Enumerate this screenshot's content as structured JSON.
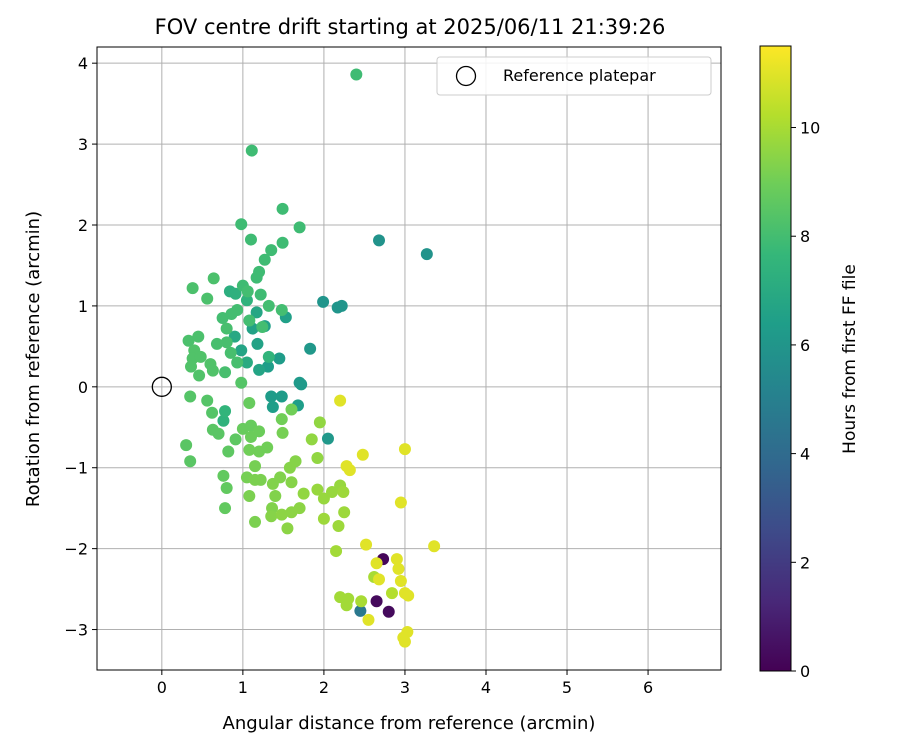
{
  "chart_data": {
    "type": "scatter",
    "title": "FOV centre drift starting at 2025/06/11 21:39:26",
    "xlabel": "Angular distance from reference (arcmin)",
    "ylabel": "Rotation from reference (arcmin)",
    "xlim": [
      -0.8,
      6.9
    ],
    "ylim": [
      -3.5,
      4.2
    ],
    "xticks": [
      0,
      1,
      2,
      3,
      4,
      5,
      6
    ],
    "yticks": [
      -3,
      -2,
      -1,
      0,
      1,
      2,
      3,
      4
    ],
    "grid": true,
    "legend": {
      "placement": "top-right",
      "entries": [
        "Reference platepar"
      ]
    },
    "reference_point": {
      "x": 0,
      "y": 0,
      "label": "Reference platepar"
    },
    "colorbar": {
      "label": "Hours from first FF file",
      "range": [
        0,
        11.5
      ],
      "ticks": [
        0,
        2,
        4,
        6,
        8,
        10
      ],
      "colormap": "viridis"
    },
    "points": [
      {
        "x": 2.73,
        "y": -2.13,
        "h": 0.2
      },
      {
        "x": 2.65,
        "y": -2.65,
        "h": 0.3
      },
      {
        "x": 2.8,
        "y": -2.78,
        "h": 0.3
      },
      {
        "x": 2.45,
        "y": -2.77,
        "h": 4.6
      },
      {
        "x": 2.68,
        "y": 1.81,
        "h": 5.9
      },
      {
        "x": 3.27,
        "y": 1.64,
        "h": 5.9
      },
      {
        "x": 1.99,
        "y": 1.05,
        "h": 6.0
      },
      {
        "x": 2.17,
        "y": 0.98,
        "h": 6.0
      },
      {
        "x": 2.22,
        "y": 1.0,
        "h": 6.0
      },
      {
        "x": 1.83,
        "y": 0.47,
        "h": 6.1
      },
      {
        "x": 2.05,
        "y": -0.64,
        "h": 6.1
      },
      {
        "x": 1.7,
        "y": 0.05,
        "h": 6.2
      },
      {
        "x": 1.72,
        "y": 0.03,
        "h": 6.2
      },
      {
        "x": 1.45,
        "y": 0.35,
        "h": 6.3
      },
      {
        "x": 1.35,
        "y": -0.12,
        "h": 6.3
      },
      {
        "x": 1.48,
        "y": -0.12,
        "h": 6.3
      },
      {
        "x": 1.37,
        "y": -0.25,
        "h": 6.4
      },
      {
        "x": 1.68,
        "y": -0.23,
        "h": 6.4
      },
      {
        "x": 1.31,
        "y": 0.25,
        "h": 6.4
      },
      {
        "x": 1.53,
        "y": 0.86,
        "h": 6.5
      },
      {
        "x": 1.27,
        "y": 0.75,
        "h": 6.5
      },
      {
        "x": 1.18,
        "y": 0.53,
        "h": 6.6
      },
      {
        "x": 1.12,
        "y": 0.72,
        "h": 6.6
      },
      {
        "x": 0.98,
        "y": 0.45,
        "h": 6.7
      },
      {
        "x": 1.2,
        "y": 0.21,
        "h": 6.7
      },
      {
        "x": 1.17,
        "y": 0.92,
        "h": 6.8
      },
      {
        "x": 0.9,
        "y": 0.62,
        "h": 6.9
      },
      {
        "x": 1.05,
        "y": 0.3,
        "h": 7.0
      },
      {
        "x": 0.84,
        "y": 1.18,
        "h": 7.2
      },
      {
        "x": 0.91,
        "y": 1.15,
        "h": 7.3
      },
      {
        "x": 1.05,
        "y": 1.07,
        "h": 7.4
      },
      {
        "x": 0.76,
        "y": -0.42,
        "h": 7.4
      },
      {
        "x": 0.78,
        "y": -0.3,
        "h": 7.5
      },
      {
        "x": 1.32,
        "y": 0.37,
        "h": 7.5
      },
      {
        "x": 2.4,
        "y": 3.86,
        "h": 7.9
      },
      {
        "x": 1.11,
        "y": 2.92,
        "h": 7.9
      },
      {
        "x": 1.49,
        "y": 2.2,
        "h": 7.9
      },
      {
        "x": 0.98,
        "y": 2.01,
        "h": 7.9
      },
      {
        "x": 1.7,
        "y": 1.97,
        "h": 7.9
      },
      {
        "x": 1.1,
        "y": 1.82,
        "h": 7.9
      },
      {
        "x": 1.49,
        "y": 1.78,
        "h": 7.9
      },
      {
        "x": 1.35,
        "y": 1.69,
        "h": 7.9
      },
      {
        "x": 1.27,
        "y": 1.57,
        "h": 7.9
      },
      {
        "x": 1.2,
        "y": 1.42,
        "h": 7.9
      },
      {
        "x": 1.17,
        "y": 1.35,
        "h": 7.9
      },
      {
        "x": 1.0,
        "y": 1.25,
        "h": 7.9
      },
      {
        "x": 1.22,
        "y": 1.14,
        "h": 7.9
      },
      {
        "x": 1.06,
        "y": 1.18,
        "h": 8.0
      },
      {
        "x": 1.32,
        "y": 1.0,
        "h": 8.0
      },
      {
        "x": 1.48,
        "y": 0.95,
        "h": 8.0
      },
      {
        "x": 0.93,
        "y": 0.95,
        "h": 8.0
      },
      {
        "x": 0.86,
        "y": 0.9,
        "h": 8.0
      },
      {
        "x": 0.75,
        "y": 0.85,
        "h": 8.0
      },
      {
        "x": 1.08,
        "y": 0.82,
        "h": 8.0
      },
      {
        "x": 1.24,
        "y": 0.74,
        "h": 8.0
      },
      {
        "x": 0.8,
        "y": 0.72,
        "h": 8.1
      },
      {
        "x": 0.8,
        "y": 0.55,
        "h": 8.1
      },
      {
        "x": 0.68,
        "y": 0.53,
        "h": 8.1
      },
      {
        "x": 0.85,
        "y": 0.42,
        "h": 8.1
      },
      {
        "x": 0.93,
        "y": 0.3,
        "h": 8.1
      },
      {
        "x": 0.78,
        "y": 0.18,
        "h": 8.1
      },
      {
        "x": 0.38,
        "y": 1.22,
        "h": 8.2
      },
      {
        "x": 0.56,
        "y": 1.09,
        "h": 8.2
      },
      {
        "x": 0.64,
        "y": 1.34,
        "h": 8.2
      },
      {
        "x": 0.33,
        "y": 0.57,
        "h": 8.2
      },
      {
        "x": 0.45,
        "y": 0.62,
        "h": 8.2
      },
      {
        "x": 0.4,
        "y": 0.45,
        "h": 8.3
      },
      {
        "x": 0.38,
        "y": 0.35,
        "h": 8.3
      },
      {
        "x": 0.48,
        "y": 0.37,
        "h": 8.3
      },
      {
        "x": 0.36,
        "y": 0.25,
        "h": 8.3
      },
      {
        "x": 0.46,
        "y": 0.14,
        "h": 8.3
      },
      {
        "x": 0.6,
        "y": 0.28,
        "h": 8.3
      },
      {
        "x": 0.63,
        "y": 0.2,
        "h": 8.3
      },
      {
        "x": 0.98,
        "y": 0.05,
        "h": 8.4
      },
      {
        "x": 0.35,
        "y": -0.12,
        "h": 8.4
      },
      {
        "x": 0.56,
        "y": -0.17,
        "h": 8.4
      },
      {
        "x": 0.62,
        "y": -0.32,
        "h": 8.4
      },
      {
        "x": 0.3,
        "y": -0.72,
        "h": 8.5
      },
      {
        "x": 0.35,
        "y": -0.92,
        "h": 8.5
      },
      {
        "x": 0.63,
        "y": -0.53,
        "h": 8.5
      },
      {
        "x": 0.7,
        "y": -0.58,
        "h": 8.5
      },
      {
        "x": 0.91,
        "y": -0.65,
        "h": 8.6
      },
      {
        "x": 0.82,
        "y": -0.8,
        "h": 8.6
      },
      {
        "x": 0.76,
        "y": -1.1,
        "h": 8.7
      },
      {
        "x": 0.8,
        "y": -1.25,
        "h": 8.7
      },
      {
        "x": 0.78,
        "y": -1.5,
        "h": 8.7
      },
      {
        "x": 1.0,
        "y": -0.52,
        "h": 8.8
      },
      {
        "x": 1.08,
        "y": -0.2,
        "h": 8.8
      },
      {
        "x": 1.1,
        "y": -0.48,
        "h": 8.8
      },
      {
        "x": 1.2,
        "y": -0.55,
        "h": 8.9
      },
      {
        "x": 1.1,
        "y": -0.62,
        "h": 8.9
      },
      {
        "x": 1.08,
        "y": -0.78,
        "h": 9.0
      },
      {
        "x": 1.2,
        "y": -0.8,
        "h": 9.0
      },
      {
        "x": 1.3,
        "y": -0.75,
        "h": 9.0
      },
      {
        "x": 1.48,
        "y": -0.4,
        "h": 9.0
      },
      {
        "x": 1.6,
        "y": -0.28,
        "h": 9.0
      },
      {
        "x": 1.49,
        "y": -0.57,
        "h": 9.1
      },
      {
        "x": 1.15,
        "y": -0.98,
        "h": 9.1
      },
      {
        "x": 1.05,
        "y": -1.12,
        "h": 9.1
      },
      {
        "x": 1.15,
        "y": -1.15,
        "h": 9.2
      },
      {
        "x": 1.22,
        "y": -1.15,
        "h": 9.2
      },
      {
        "x": 1.08,
        "y": -1.35,
        "h": 9.2
      },
      {
        "x": 1.15,
        "y": -1.67,
        "h": 9.2
      },
      {
        "x": 1.37,
        "y": -1.2,
        "h": 9.3
      },
      {
        "x": 1.46,
        "y": -1.12,
        "h": 9.3
      },
      {
        "x": 1.4,
        "y": -1.35,
        "h": 9.3
      },
      {
        "x": 1.36,
        "y": -1.5,
        "h": 9.3
      },
      {
        "x": 1.35,
        "y": -1.6,
        "h": 9.4
      },
      {
        "x": 1.58,
        "y": -1.0,
        "h": 9.4
      },
      {
        "x": 1.65,
        "y": -0.92,
        "h": 9.4
      },
      {
        "x": 1.6,
        "y": -1.18,
        "h": 9.4
      },
      {
        "x": 1.48,
        "y": -1.58,
        "h": 9.5
      },
      {
        "x": 1.6,
        "y": -1.55,
        "h": 9.5
      },
      {
        "x": 1.55,
        "y": -1.75,
        "h": 9.5
      },
      {
        "x": 1.7,
        "y": -1.5,
        "h": 9.5
      },
      {
        "x": 1.75,
        "y": -1.32,
        "h": 9.6
      },
      {
        "x": 1.85,
        "y": -0.65,
        "h": 9.6
      },
      {
        "x": 1.92,
        "y": -0.88,
        "h": 9.6
      },
      {
        "x": 1.95,
        "y": -0.44,
        "h": 9.6
      },
      {
        "x": 1.92,
        "y": -1.27,
        "h": 9.7
      },
      {
        "x": 2.0,
        "y": -1.38,
        "h": 9.7
      },
      {
        "x": 2.1,
        "y": -1.3,
        "h": 9.7
      },
      {
        "x": 2.2,
        "y": -1.22,
        "h": 9.7
      },
      {
        "x": 2.24,
        "y": -1.3,
        "h": 9.8
      },
      {
        "x": 2.0,
        "y": -1.63,
        "h": 9.8
      },
      {
        "x": 2.18,
        "y": -1.72,
        "h": 9.8
      },
      {
        "x": 2.25,
        "y": -1.55,
        "h": 9.8
      },
      {
        "x": 2.15,
        "y": -2.03,
        "h": 9.9
      },
      {
        "x": 2.2,
        "y": -2.6,
        "h": 9.9
      },
      {
        "x": 2.3,
        "y": -2.62,
        "h": 9.9
      },
      {
        "x": 2.28,
        "y": -2.7,
        "h": 9.9
      },
      {
        "x": 2.46,
        "y": -2.65,
        "h": 10.0
      },
      {
        "x": 2.62,
        "y": -2.35,
        "h": 10.0
      },
      {
        "x": 2.84,
        "y": -2.55,
        "h": 10.2
      },
      {
        "x": 2.2,
        "y": -0.17,
        "h": 11.0
      },
      {
        "x": 2.28,
        "y": -0.98,
        "h": 11.0
      },
      {
        "x": 2.32,
        "y": -1.03,
        "h": 11.0
      },
      {
        "x": 2.48,
        "y": -0.84,
        "h": 11.0
      },
      {
        "x": 3.0,
        "y": -0.77,
        "h": 11.0
      },
      {
        "x": 2.95,
        "y": -1.43,
        "h": 11.0
      },
      {
        "x": 2.52,
        "y": -1.95,
        "h": 11.0
      },
      {
        "x": 3.36,
        "y": -1.97,
        "h": 11.0
      },
      {
        "x": 2.65,
        "y": -2.18,
        "h": 11.0
      },
      {
        "x": 2.9,
        "y": -2.13,
        "h": 11.0
      },
      {
        "x": 2.92,
        "y": -2.25,
        "h": 11.0
      },
      {
        "x": 2.68,
        "y": -2.38,
        "h": 11.0
      },
      {
        "x": 2.95,
        "y": -2.4,
        "h": 11.0
      },
      {
        "x": 3.0,
        "y": -2.55,
        "h": 11.0
      },
      {
        "x": 3.04,
        "y": -2.58,
        "h": 11.0
      },
      {
        "x": 2.55,
        "y": -2.88,
        "h": 11.0
      },
      {
        "x": 3.03,
        "y": -3.03,
        "h": 11.0
      },
      {
        "x": 2.98,
        "y": -3.1,
        "h": 11.0
      },
      {
        "x": 3.0,
        "y": -3.15,
        "h": 11.0
      }
    ]
  }
}
